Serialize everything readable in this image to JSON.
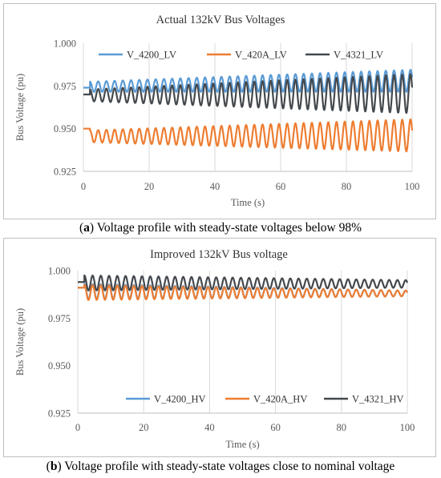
{
  "captions": [
    {
      "tag": "a",
      "text": "Voltage profile with steady-state voltages below 98%"
    },
    {
      "tag": "b",
      "text": "Voltage profile with steady-state voltages close to nominal voltage"
    }
  ],
  "chart_data": [
    {
      "type": "line",
      "title": "Actual 132kV Bus Voltages",
      "xlabel": "Time (s)",
      "ylabel": "Bus Voltage (pu)",
      "xlim": [
        0,
        100
      ],
      "ylim": [
        0.925,
        1.0
      ],
      "xticks": [
        0,
        20,
        40,
        60,
        80,
        100
      ],
      "yticks": [
        0.925,
        0.95,
        0.975,
        1.0
      ],
      "ytick_labels": [
        "0.925",
        "0.950",
        "0.975",
        "1.000"
      ],
      "grid": "vertical",
      "legend_position": "top",
      "oscillation_start": 2,
      "oscillation_period": 2.5,
      "series": [
        {
          "name": "V_4200_LV",
          "color": "#5b9bd5",
          "initial": 0.974,
          "mean": [
            0.9745,
            0.978
          ],
          "amplitude": [
            0.003,
            0.0065
          ]
        },
        {
          "name": "V_420A_LV",
          "color": "#ed7d31",
          "initial": 0.95,
          "mean": [
            0.9455,
            0.946
          ],
          "amplitude": [
            0.0035,
            0.0095
          ]
        },
        {
          "name": "V_4321_LV",
          "color": "#44494e",
          "initial": 0.97,
          "mean": [
            0.9695,
            0.9705
          ],
          "amplitude": [
            0.0035,
            0.0115
          ]
        }
      ]
    },
    {
      "type": "line",
      "title": "Improved 132kV Bus voltage",
      "xlabel": "Time (s)",
      "ylabel": "Bus Voltage (pu)",
      "xlim": [
        0,
        100
      ],
      "ylim": [
        0.925,
        1.0
      ],
      "xticks": [
        0,
        20,
        40,
        60,
        80,
        100
      ],
      "yticks": [
        0.925,
        0.95,
        0.975,
        1.0
      ],
      "ytick_labels": [
        "0.925",
        "0.950",
        "0.975",
        "1.000"
      ],
      "grid": "vertical",
      "legend_position": "bottom",
      "oscillation_start": 2,
      "oscillation_period": 2.5,
      "series": [
        {
          "name": "V_4200_HV",
          "color": "#5b9bd5",
          "initial": 0.991,
          "mean": [
            0.989,
            0.988
          ],
          "amplitude": [
            0.004,
            0.0015
          ]
        },
        {
          "name": "V_420A_HV",
          "color": "#ed7d31",
          "initial": 0.991,
          "mean": [
            0.9885,
            0.988
          ],
          "amplitude": [
            0.004,
            0.0015
          ]
        },
        {
          "name": "V_4321_HV",
          "color": "#44494e",
          "initial": 0.994,
          "mean": [
            0.9935,
            0.993
          ],
          "amplitude": [
            0.004,
            0.002
          ]
        }
      ]
    }
  ]
}
